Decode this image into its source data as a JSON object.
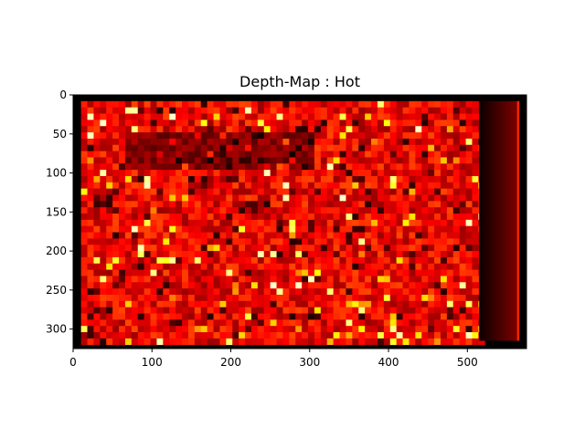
{
  "chart_data": {
    "type": "heatmap",
    "title": "Depth-Map : Hot",
    "colormap": "hot",
    "xlabel": "",
    "ylabel": "",
    "xlim": [
      0,
      575
    ],
    "ylim": [
      325,
      0
    ],
    "x_ticks": [
      0,
      100,
      200,
      300,
      400,
      500
    ],
    "y_ticks": [
      0,
      50,
      100,
      150,
      200,
      250,
      300
    ],
    "grid": false,
    "colors": {
      "background": "#ffffff",
      "frame": "#000000"
    }
  }
}
